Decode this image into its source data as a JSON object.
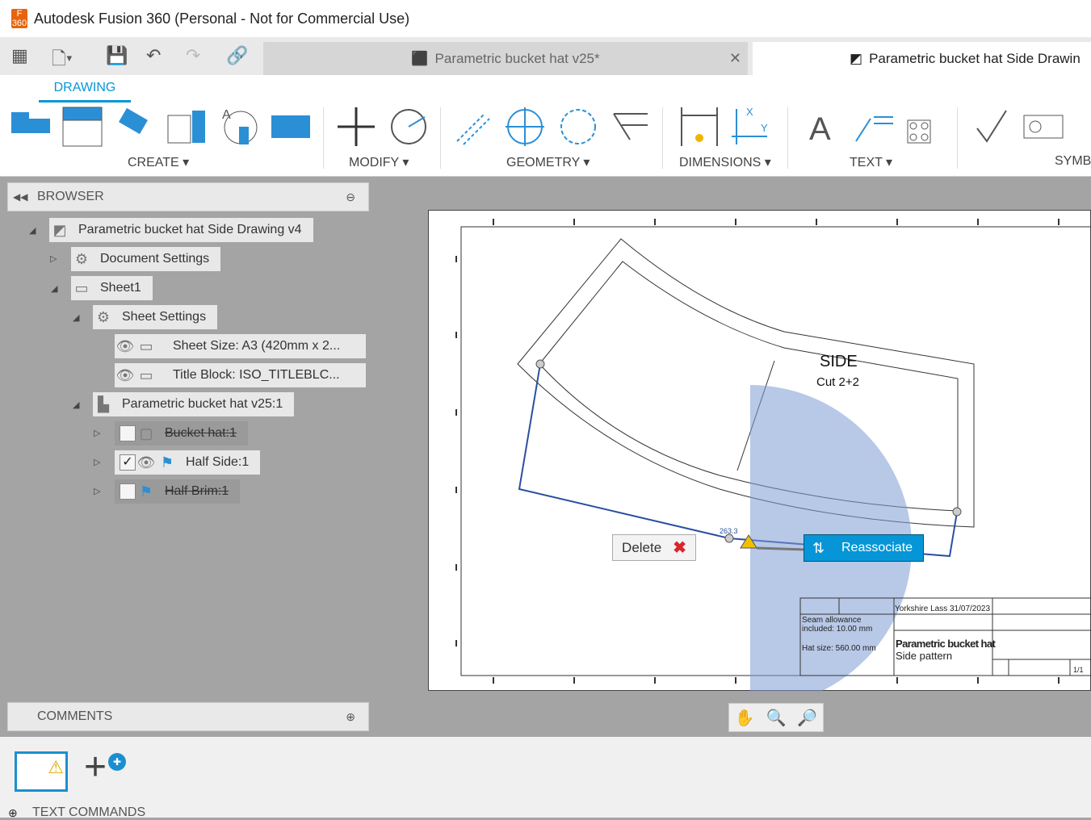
{
  "window": {
    "title": "Autodesk Fusion 360 (Personal - Not for Commercial Use)",
    "app_icon_text": "F 360"
  },
  "tabs": [
    {
      "label": "Parametric bucket hat v25*",
      "active": false
    },
    {
      "label": "Parametric bucket hat Side Drawin",
      "active": true
    }
  ],
  "ribbon": {
    "active_tab": "DRAWING",
    "groups": [
      "CREATE ▾",
      "MODIFY ▾",
      "GEOMETRY ▾",
      "DIMENSIONS ▾",
      "TEXT ▾",
      "SYMB"
    ]
  },
  "browser": {
    "title": "BROWSER",
    "items": [
      {
        "label": "Parametric bucket hat Side Drawing v4"
      },
      {
        "label": "Document Settings"
      },
      {
        "label": "Sheet1"
      },
      {
        "label": "Sheet Settings"
      },
      {
        "label": "Sheet Size: A3 (420mm x 2..."
      },
      {
        "label": "Title Block: ISO_TITLEBLC..."
      },
      {
        "label": "Parametric bucket hat v25:1"
      },
      {
        "label": "Bucket hat:1",
        "suppressed": true
      },
      {
        "label": "Half Side:1",
        "checked": true
      },
      {
        "label": "Half Brim:1",
        "suppressed": true
      }
    ]
  },
  "comments": {
    "title": "COMMENTS"
  },
  "text_commands": {
    "label": "TEXT COMMANDS"
  },
  "drawing": {
    "title": "SIDE",
    "subtitle": "Cut 2+2",
    "dimension": "263.3",
    "title_block": {
      "author_date": "Yorkshire Lass  31/07/2023",
      "note1": "Seam allowance",
      "note2": "included: 10.00 mm",
      "note3": "Hat size: 560.00 mm",
      "name1": "Parametric bucket hat",
      "name2": "Side pattern",
      "sheet": "1/1"
    }
  },
  "context": {
    "delete_label": "Delete",
    "reassociate_label": "Reassociate"
  },
  "colors": {
    "accent": "#0696d7",
    "canvas": "#a4a4a4",
    "selection": "#2a4fa0"
  }
}
